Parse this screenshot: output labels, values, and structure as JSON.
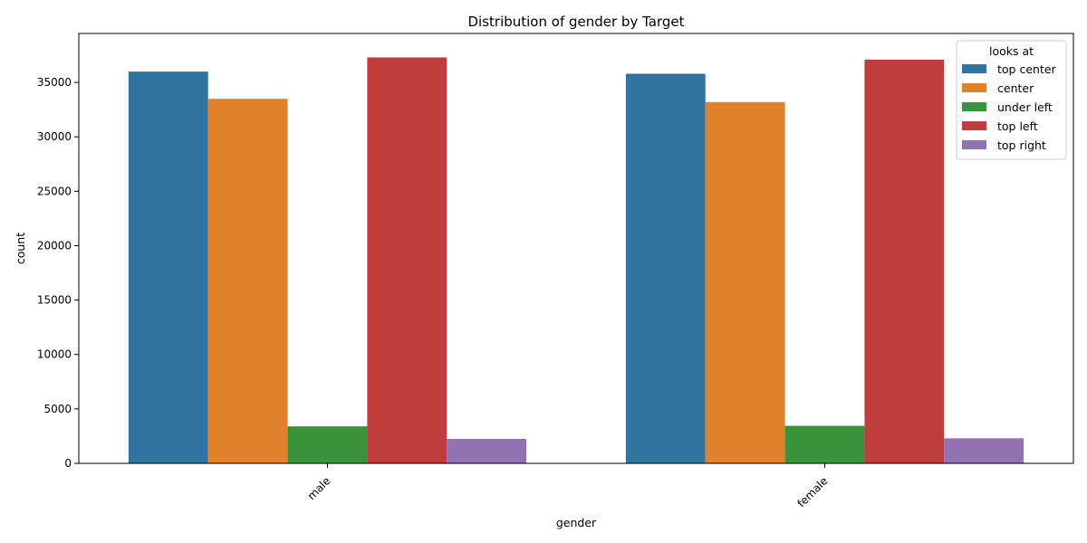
{
  "chart_data": {
    "type": "bar",
    "title": "Distribution of gender by Target",
    "xlabel": "gender",
    "ylabel": "count",
    "categories": [
      "male",
      "female"
    ],
    "ylim": [
      0,
      39500
    ],
    "yticks": [
      0,
      5000,
      10000,
      15000,
      20000,
      25000,
      30000,
      35000
    ],
    "legend": {
      "title": "looks at",
      "position": "top-right"
    },
    "grid": false,
    "series": [
      {
        "name": "top center",
        "color": "#3274a1",
        "values": [
          36000,
          35800
        ]
      },
      {
        "name": "center",
        "color": "#e1812c",
        "values": [
          33500,
          33200
        ]
      },
      {
        "name": "under left",
        "color": "#3a923a",
        "values": [
          3400,
          3450
        ]
      },
      {
        "name": "top left",
        "color": "#c03d3e",
        "values": [
          37300,
          37100
        ]
      },
      {
        "name": "top right",
        "color": "#9372b2",
        "values": [
          2250,
          2300
        ]
      }
    ]
  }
}
